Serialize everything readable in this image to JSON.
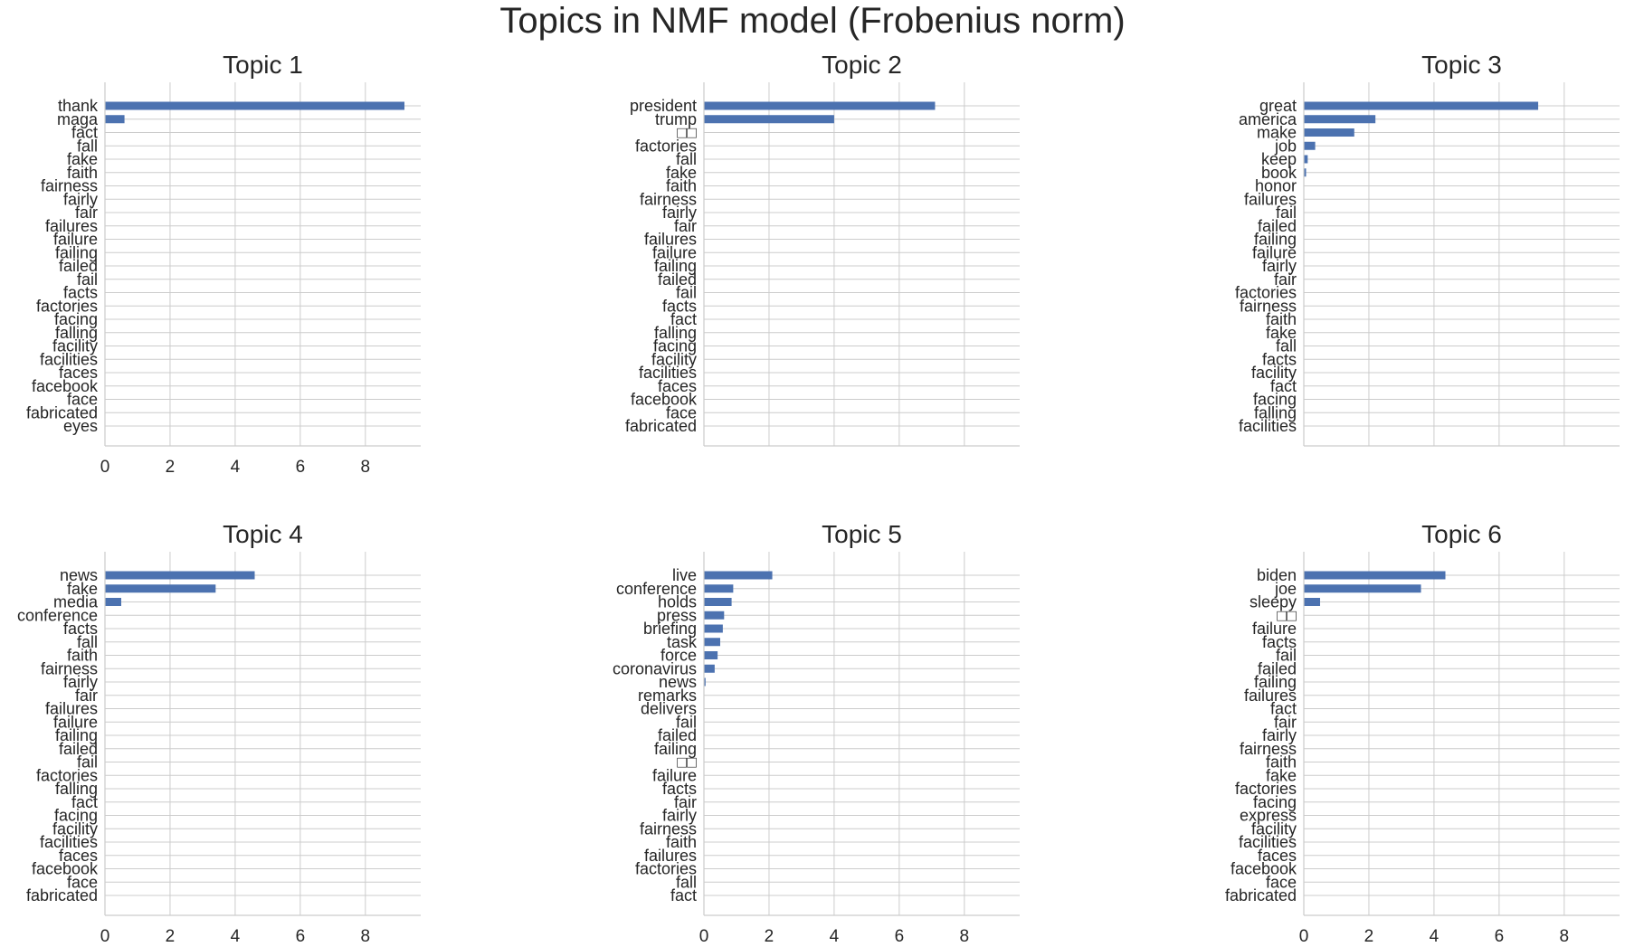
{
  "title": "Topics in NMF model (Frobenius norm)",
  "colors": {
    "bar": "#4c72b0",
    "grid": "#cccccc",
    "text": "#262626"
  },
  "chart_data": [
    {
      "type": "bar",
      "orientation": "horizontal",
      "title": "Topic 1",
      "xlim": [
        0,
        9.7
      ],
      "xticks": [
        "0",
        "2",
        "4",
        "6",
        "8"
      ],
      "grid": true,
      "categories": [
        "thank",
        "maga",
        "fact",
        "fall",
        "fake",
        "faith",
        "fairness",
        "fairly",
        "fair",
        "failures",
        "failure",
        "failing",
        "failed",
        "fail",
        "facts",
        "factories",
        "facing",
        "falling",
        "facility",
        "facilities",
        "faces",
        "facebook",
        "face",
        "fabricated",
        "eyes"
      ],
      "values": [
        9.2,
        0.6,
        0,
        0,
        0,
        0,
        0,
        0,
        0,
        0,
        0,
        0,
        0,
        0,
        0,
        0,
        0,
        0,
        0,
        0,
        0,
        0,
        0,
        0,
        0
      ]
    },
    {
      "type": "bar",
      "orientation": "horizontal",
      "title": "Topic 2",
      "xlim": [
        0,
        9.7
      ],
      "xticks": [],
      "grid": true,
      "categories": [
        "president",
        "trump",
        "□□",
        "factories",
        "fall",
        "fake",
        "faith",
        "fairness",
        "fairly",
        "fair",
        "failures",
        "failure",
        "failing",
        "failed",
        "fail",
        "facts",
        "fact",
        "falling",
        "facing",
        "facility",
        "facilities",
        "faces",
        "facebook",
        "face",
        "fabricated"
      ],
      "values": [
        7.1,
        4.0,
        0,
        0,
        0,
        0,
        0,
        0,
        0,
        0,
        0,
        0,
        0,
        0,
        0,
        0,
        0,
        0,
        0,
        0,
        0,
        0,
        0,
        0,
        0
      ]
    },
    {
      "type": "bar",
      "orientation": "horizontal",
      "title": "Topic 3",
      "xlim": [
        0,
        9.7
      ],
      "xticks": [],
      "grid": true,
      "categories": [
        "great",
        "america",
        "make",
        "job",
        "keep",
        "book",
        "honor",
        "failures",
        "fail",
        "failed",
        "failing",
        "failure",
        "fairly",
        "fair",
        "factories",
        "fairness",
        "faith",
        "fake",
        "fall",
        "facts",
        "facility",
        "fact",
        "facing",
        "falling",
        "facilities"
      ],
      "values": [
        7.2,
        2.2,
        1.55,
        0.35,
        0.12,
        0.07,
        0,
        0,
        0,
        0,
        0,
        0,
        0,
        0,
        0,
        0,
        0,
        0,
        0,
        0,
        0,
        0,
        0,
        0,
        0
      ]
    },
    {
      "type": "bar",
      "orientation": "horizontal",
      "title": "Topic 4",
      "xlim": [
        0,
        9.7
      ],
      "xticks": [
        "0",
        "2",
        "4",
        "6",
        "8"
      ],
      "grid": true,
      "categories": [
        "news",
        "fake",
        "media",
        "conference",
        "facts",
        "fall",
        "faith",
        "fairness",
        "fairly",
        "fair",
        "failures",
        "failure",
        "failing",
        "failed",
        "fail",
        "factories",
        "falling",
        "fact",
        "facing",
        "facility",
        "facilities",
        "faces",
        "facebook",
        "face",
        "fabricated"
      ],
      "values": [
        4.6,
        3.4,
        0.5,
        0,
        0,
        0,
        0,
        0,
        0,
        0,
        0,
        0,
        0,
        0,
        0,
        0,
        0,
        0,
        0,
        0,
        0,
        0,
        0,
        0,
        0
      ]
    },
    {
      "type": "bar",
      "orientation": "horizontal",
      "title": "Topic 5",
      "xlim": [
        0,
        9.7
      ],
      "xticks": [
        "0",
        "2",
        "4",
        "6",
        "8"
      ],
      "grid": true,
      "categories": [
        "live",
        "conference",
        "holds",
        "press",
        "briefing",
        "task",
        "force",
        "coronavirus",
        "news",
        "remarks",
        "delivers",
        "fail",
        "failed",
        "failing",
        "□□",
        "failure",
        "facts",
        "fair",
        "fairly",
        "fairness",
        "faith",
        "failures",
        "factories",
        "fall",
        "fact"
      ],
      "values": [
        2.1,
        0.9,
        0.85,
        0.62,
        0.58,
        0.5,
        0.42,
        0.33,
        0.05,
        0,
        0,
        0,
        0,
        0,
        0,
        0,
        0,
        0,
        0,
        0,
        0,
        0,
        0,
        0,
        0
      ]
    },
    {
      "type": "bar",
      "orientation": "horizontal",
      "title": "Topic 6",
      "xlim": [
        0,
        9.7
      ],
      "xticks": [
        "0",
        "2",
        "4",
        "6",
        "8"
      ],
      "grid": true,
      "categories": [
        "biden",
        "joe",
        "sleepy",
        "□□",
        "failure",
        "facts",
        "fail",
        "failed",
        "failing",
        "failures",
        "fact",
        "fair",
        "fairly",
        "fairness",
        "faith",
        "fake",
        "factories",
        "facing",
        "express",
        "facility",
        "facilities",
        "faces",
        "facebook",
        "face",
        "fabricated"
      ],
      "values": [
        4.35,
        3.6,
        0.5,
        0,
        0,
        0,
        0,
        0,
        0,
        0,
        0,
        0,
        0,
        0,
        0,
        0,
        0,
        0,
        0,
        0,
        0,
        0,
        0,
        0,
        0
      ]
    }
  ]
}
